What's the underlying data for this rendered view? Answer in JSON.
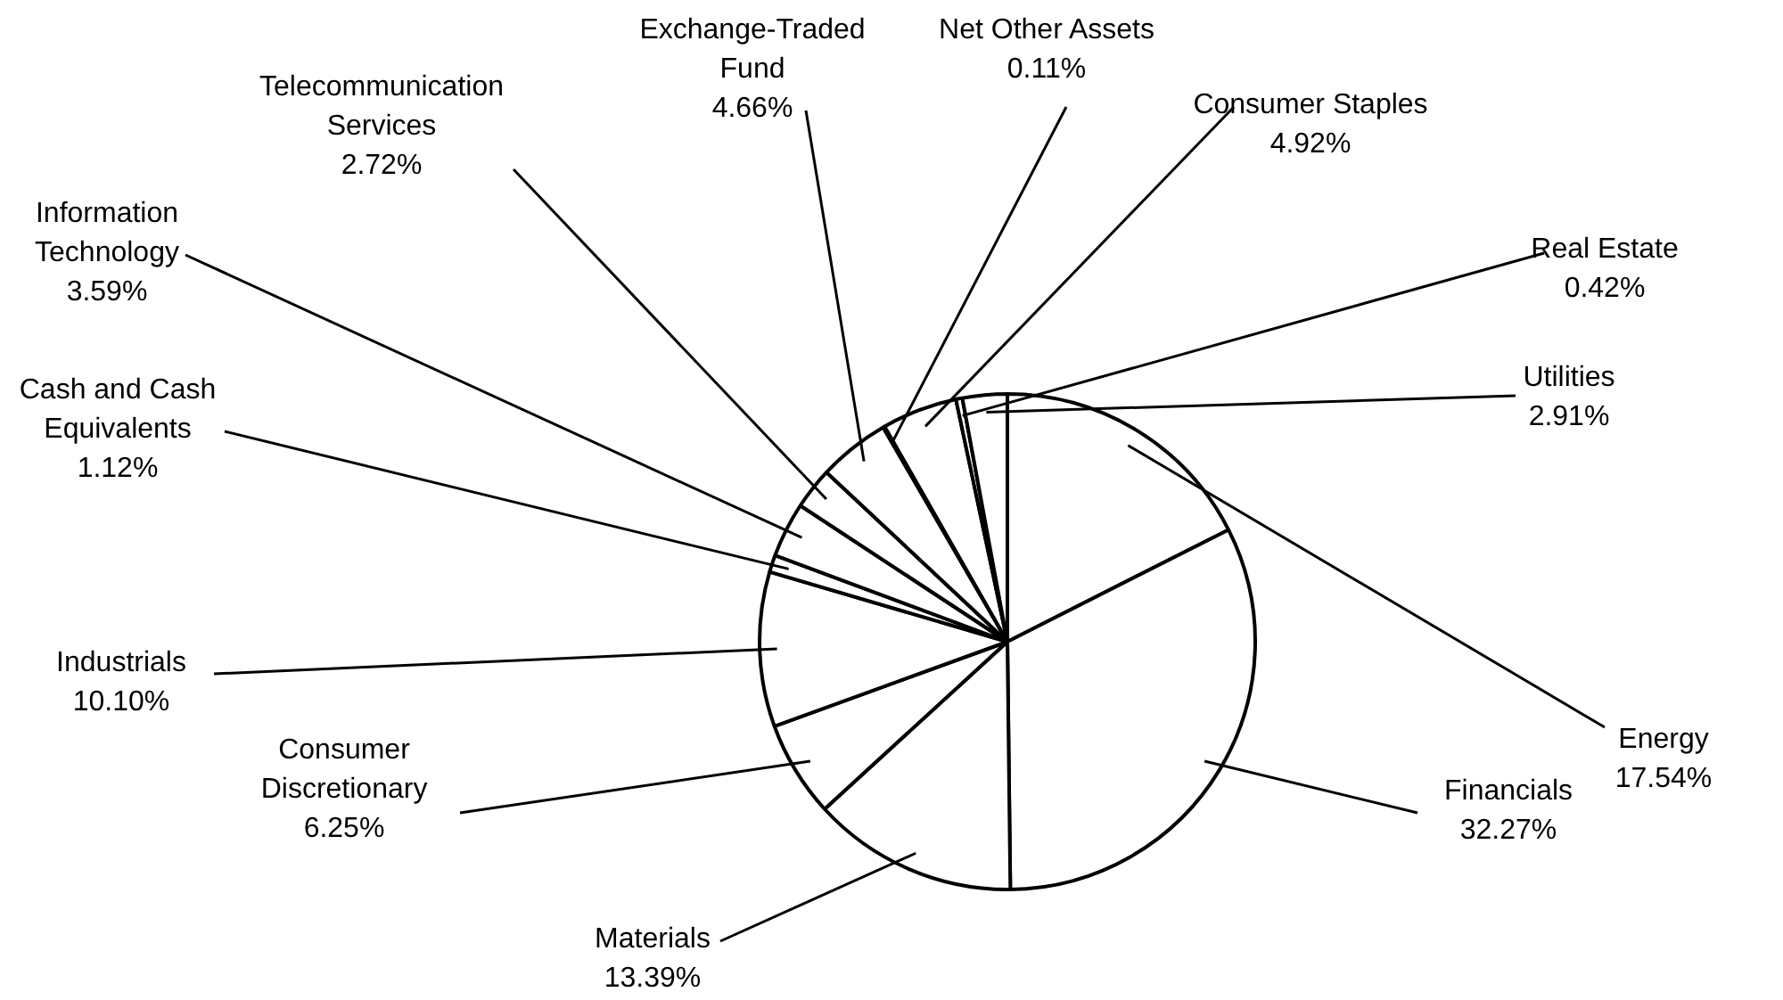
{
  "chart_data": {
    "type": "pie",
    "categories": [
      "Energy",
      "Financials",
      "Materials",
      "Consumer Discretionary",
      "Industrials",
      "Cash and Cash Equivalents",
      "Information Technology",
      "Telecommunication Services",
      "Exchange-Traded Fund",
      "Net Other Assets",
      "Consumer Staples",
      "Real Estate",
      "Utilities"
    ],
    "values": [
      17.54,
      32.27,
      13.39,
      6.25,
      10.1,
      1.12,
      3.59,
      2.72,
      4.66,
      0.11,
      4.92,
      0.42,
      2.91
    ],
    "value_labels": [
      "17.54%",
      "32.27%",
      "13.39%",
      "6.25%",
      "10.10%",
      "1.12%",
      "3.59%",
      "2.72%",
      "4.66%",
      "0.11%",
      "4.92%",
      "0.42%",
      "2.91%"
    ],
    "colors": [
      "#ffffff",
      "#ffffff",
      "#ffffff",
      "#ffffff",
      "#ffffff",
      "#ffffff",
      "#ffffff",
      "#ffffff",
      "#ffffff",
      "#ffffff",
      "#ffffff",
      "#ffffff",
      "#ffffff"
    ],
    "legend": false
  }
}
